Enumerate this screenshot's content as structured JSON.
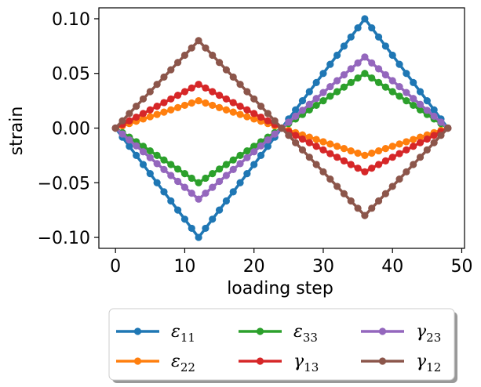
{
  "chart_data": {
    "type": "line",
    "title": "",
    "xlabel": "loading step",
    "ylabel": "strain",
    "xlim": [
      -2.4,
      50.4
    ],
    "ylim": [
      -0.11,
      0.11
    ],
    "xticks": [
      0,
      10,
      20,
      30,
      40,
      50
    ],
    "xtick_labels": [
      "0",
      "10",
      "20",
      "30",
      "40",
      "50"
    ],
    "yticks": [
      -0.1,
      -0.05,
      0.0,
      0.05,
      0.1
    ],
    "ytick_labels": [
      "−0.10",
      "−0.05",
      "0.00",
      "0.05",
      "0.10"
    ],
    "grid": false,
    "legend_position": "below",
    "legend_columns": 3,
    "x": "0..48 step 1",
    "series": [
      {
        "name": "ε_11",
        "base": "ε",
        "sub": "11",
        "color": "#1f77b4",
        "peak_at_12": -0.1,
        "peak_at_36": 0.1
      },
      {
        "name": "ε_22",
        "base": "ε",
        "sub": "22",
        "color": "#ff7f0e",
        "peak_at_12": 0.025,
        "peak_at_36": -0.025
      },
      {
        "name": "ε_33",
        "base": "ε",
        "sub": "33",
        "color": "#2ca02c",
        "peak_at_12": -0.05,
        "peak_at_36": 0.05
      },
      {
        "name": "γ_13",
        "base": "γ",
        "sub": "13",
        "color": "#d62728",
        "peak_at_12": 0.04,
        "peak_at_36": -0.04
      },
      {
        "name": "γ_23",
        "base": "γ",
        "sub": "23",
        "color": "#9467bd",
        "peak_at_12": -0.065,
        "peak_at_36": 0.065
      },
      {
        "name": "γ_12",
        "base": "γ",
        "sub": "12",
        "color": "#8c564b",
        "peak_at_12": 0.08,
        "peak_at_36": -0.08
      }
    ]
  }
}
